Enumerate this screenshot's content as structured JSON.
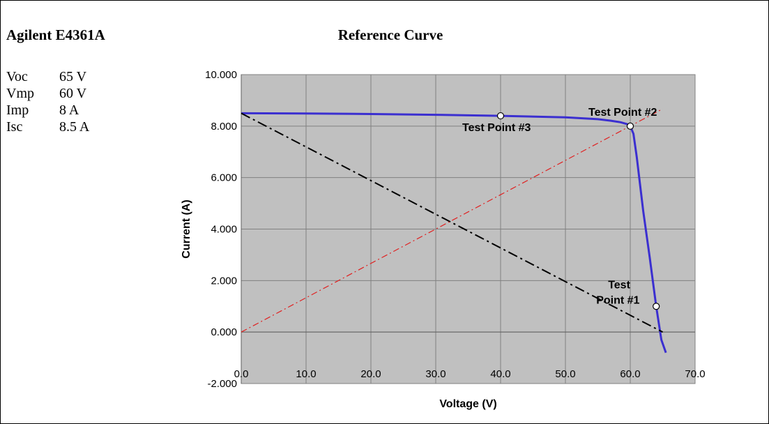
{
  "header": {
    "model": "Agilent E4361A"
  },
  "specs": [
    {
      "name": "Voc",
      "value": "65 V"
    },
    {
      "name": "Vmp",
      "value": "60 V"
    },
    {
      "name": "Imp",
      "value": "8 A"
    },
    {
      "name": "Isc",
      "value": "8.5 A"
    }
  ],
  "chart_data": {
    "type": "line",
    "title": "Reference Curve",
    "xlabel": "Voltage (V)",
    "ylabel": "Current (A)",
    "xlim": [
      0,
      70
    ],
    "ylim": [
      -2,
      10
    ],
    "x_ticks": [
      "0.0",
      "10.0",
      "20.0",
      "30.0",
      "40.0",
      "50.0",
      "60.0",
      "70.0"
    ],
    "y_ticks": [
      "-2.000",
      "0.000",
      "2.000",
      "4.000",
      "6.000",
      "8.000",
      "10.000"
    ],
    "grid": true,
    "plot_background": "#c0c0c0",
    "series": [
      {
        "color": "#3b2fd0",
        "points": [
          [
            0,
            8.5
          ],
          [
            10,
            8.49
          ],
          [
            20,
            8.47
          ],
          [
            30,
            8.44
          ],
          [
            40,
            8.4
          ],
          [
            50,
            8.34
          ],
          [
            55,
            8.27
          ],
          [
            57,
            8.21
          ],
          [
            58.5,
            8.15
          ],
          [
            59.5,
            8.08
          ],
          [
            60,
            8.0
          ],
          [
            60.5,
            7.7
          ],
          [
            61,
            6.8
          ],
          [
            62,
            4.7
          ],
          [
            63,
            2.9
          ],
          [
            64,
            1.0
          ],
          [
            64.8,
            -0.3
          ],
          [
            65.5,
            -0.8
          ]
        ]
      },
      {
        "color": "#000000",
        "style": "dash-dot",
        "points": [
          [
            0,
            8.5
          ],
          [
            65,
            0
          ]
        ]
      },
      {
        "color": "#e02020",
        "style": "dash-dot",
        "points": [
          [
            0,
            0
          ],
          [
            65,
            8.67
          ]
        ]
      }
    ],
    "test_points": [
      {
        "label": "Test Point #1",
        "label_lines": [
          "Test",
          "Point #1"
        ],
        "x": 64,
        "y": 1.0
      },
      {
        "label": "Test Point #2",
        "label_lines": [
          "Test Point #2"
        ],
        "x": 60,
        "y": 8.0
      },
      {
        "label": "Test Point #3",
        "label_lines": [
          "Test Point #3"
        ],
        "x": 40,
        "y": 8.4
      }
    ]
  }
}
